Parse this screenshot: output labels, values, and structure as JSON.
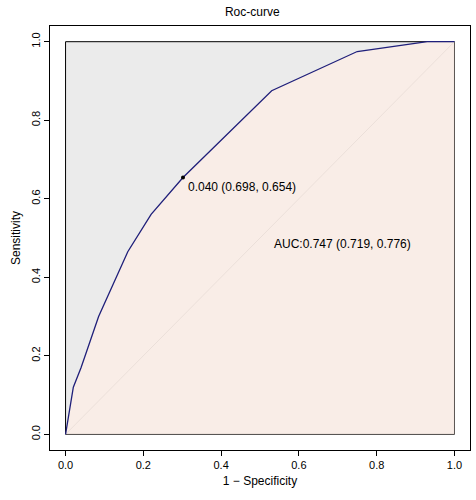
{
  "chart_data": {
    "type": "line",
    "title": "Roc-curve",
    "x_label": "1 − Specificity",
    "y_label": "Sensitivity",
    "x": [
      0,
      0.02,
      0.04,
      0.085,
      0.16,
      0.22,
      0.302,
      0.53,
      0.75,
      0.93,
      1.0
    ],
    "values": [
      0,
      0.12,
      0.17,
      0.3,
      0.465,
      0.56,
      0.654,
      0.875,
      0.975,
      1.0,
      1.0
    ],
    "color": "#1f1f7a",
    "reference_line": {
      "x": [
        0,
        1
      ],
      "y": [
        0,
        1
      ],
      "color": "#b4b4b4"
    },
    "annotations": [
      {
        "text": "0.040 (0.698, 0.654)",
        "x": 0.302,
        "y": 0.654,
        "marker": "point"
      },
      {
        "text": "AUC:0.747 (0.719, 0.776)",
        "x": 0.53,
        "y": 0.485
      }
    ],
    "xlim": [
      -0.04,
      1.04
    ],
    "ylim": [
      -0.04,
      1.04
    ],
    "xticks": [
      {
        "value": 0,
        "label": "0.0"
      },
      0.2,
      0.4,
      0.6,
      0.8,
      {
        "value": 1,
        "label": "1.0"
      }
    ],
    "yticks": [
      {
        "value": 0,
        "label": "0.0"
      },
      0.2,
      0.4,
      0.6,
      0.8,
      {
        "value": 1,
        "label": "1.0"
      }
    ],
    "grid": false
  }
}
